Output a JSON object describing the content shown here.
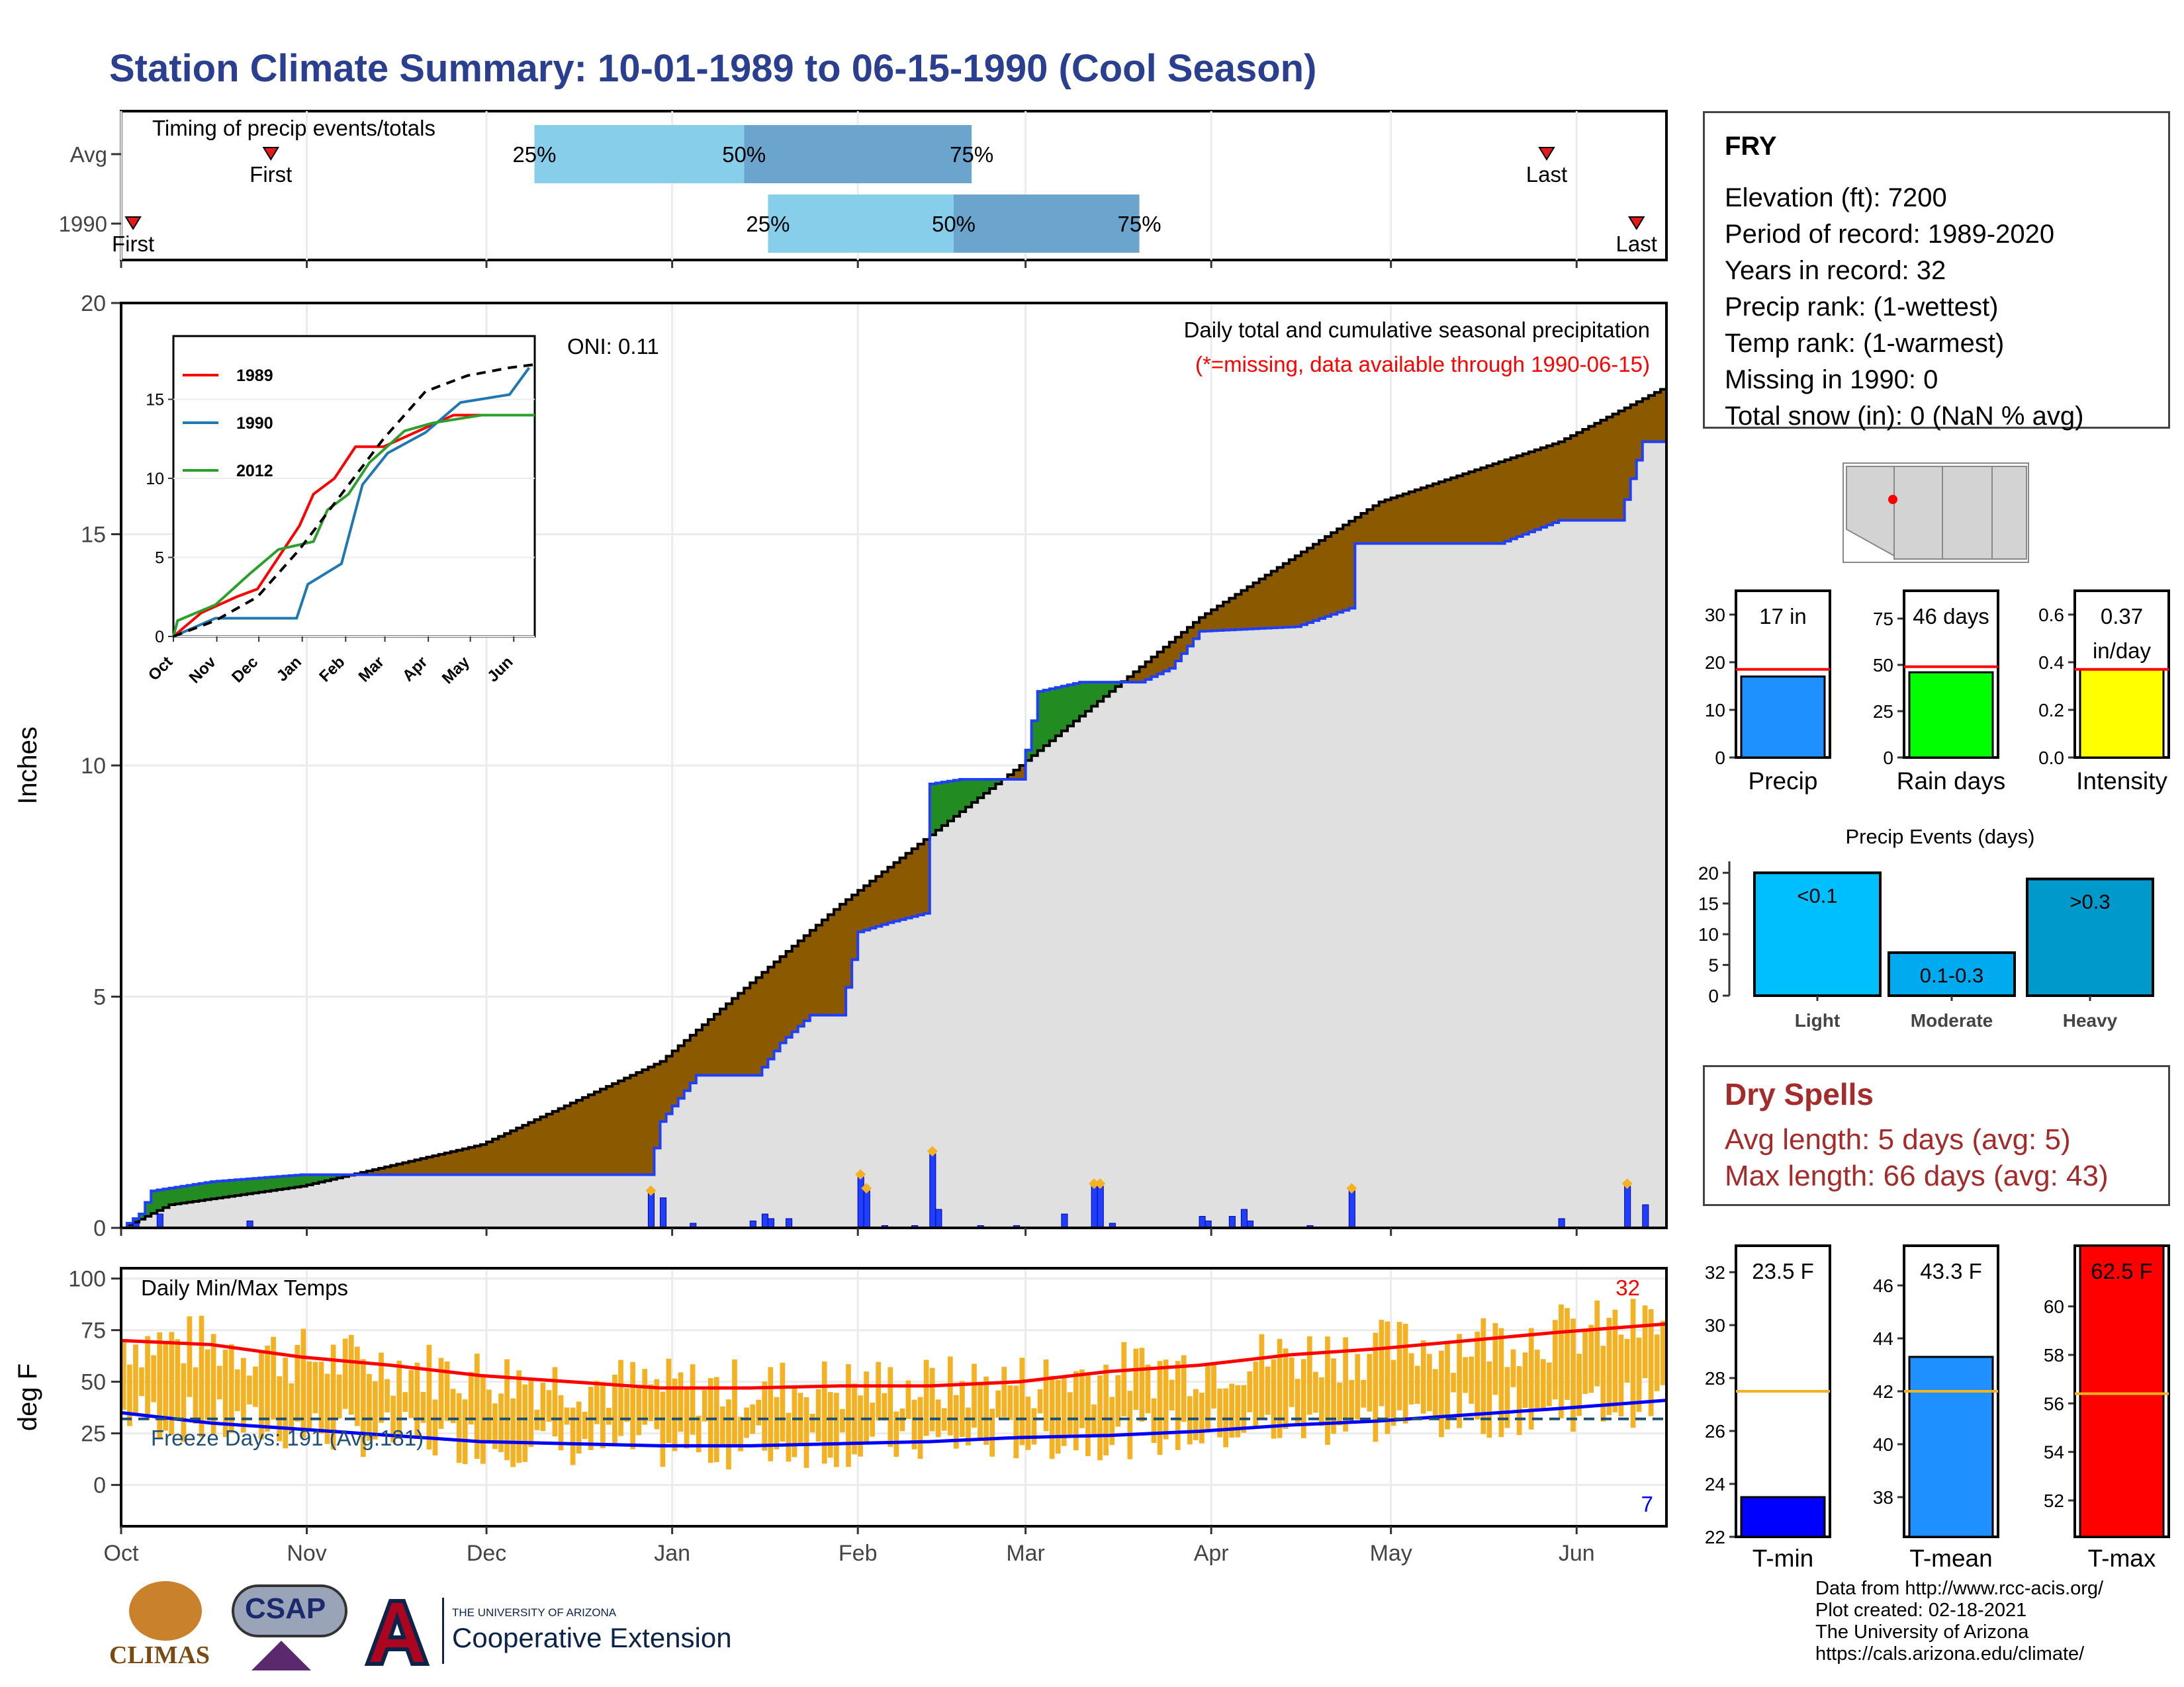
{
  "title": "Station Climate Summary: 10-01-1989 to 06-15-1990 (Cool Season)",
  "station": {
    "name": "FRY",
    "lines": [
      "Elevation (ft): 7200",
      "Period of record: 1989-2020",
      "Years in record: 32",
      "Precip rank:  (1-wettest)",
      "Temp rank:  (1-warmest)",
      "Missing in 1990: 0",
      "Total snow (in): 0 (NaN % avg)"
    ]
  },
  "dry_spells": {
    "title": "Dry Spells",
    "avg_length": "Avg length: 5 days (avg: 5)",
    "max_length": "Max length: 66 days (avg: 43)"
  },
  "credits": [
    "Data from http://www.rcc-acis.org/",
    "Plot created: 02-18-2021",
    "The University of Arizona",
    "https://cals.arizona.edu/climate/"
  ],
  "logos": {
    "climas": "CLIMAS",
    "csap": "CSAP",
    "ua_small": "THE UNIVERSITY OF ARIZONA",
    "ua_big": "Cooperative Extension"
  },
  "colors": {
    "title": "#2a3f8f",
    "light_blue": "#87ceeb",
    "mid_blue": "#6ba4cc",
    "brown": "#8b5a00",
    "grey_fill": "#e0e0e0",
    "precip_blue": "#1f3fff",
    "green": "#228b22",
    "orange": "#f4b223",
    "max_red": "#ff0000",
    "min_blue": "#0000ff",
    "dry_red": "#a52a2a"
  },
  "chart_data": [
    {
      "id": "timing",
      "type": "bar",
      "title": "Timing of precip events/totals",
      "rows": [
        {
          "label": "Avg",
          "first_label": "First",
          "first": "1989-10-26",
          "p25": "1989-12-09",
          "p50": "1990-01-13",
          "p75": "1990-02-20",
          "last": "1990-05-27",
          "last_label": "Last"
        },
        {
          "label": "1990",
          "first_label": "First",
          "first": "1989-10-03",
          "p25": "1990-01-17",
          "p50": "1990-02-17",
          "p75": "1990-03-20",
          "last": "1990-06-11",
          "last_label": "Last"
        }
      ],
      "pct_labels": [
        "25%",
        "50%",
        "75%"
      ]
    },
    {
      "id": "precip",
      "type": "area",
      "title": "Daily total and cumulative seasonal precipitation",
      "subtitle": "(*=missing, data available through 1990-06-15)",
      "annotation": "ONI: 0.11",
      "ylabel": "Inches",
      "ylim": [
        0,
        20
      ],
      "yticks": [
        0,
        5,
        10,
        15,
        20
      ],
      "xticks": [
        "Oct",
        "Nov",
        "Dec",
        "Jan",
        "Feb",
        "Mar",
        "Apr",
        "May",
        "Jun"
      ],
      "avg_cumulative": [
        [
          0,
          0
        ],
        [
          8,
          0.5
        ],
        [
          30,
          0.9
        ],
        [
          60,
          1.8
        ],
        [
          90,
          3.6
        ],
        [
          120,
          7
        ],
        [
          150,
          10
        ],
        [
          180,
          13.2
        ],
        [
          210,
          15.7
        ],
        [
          240,
          17
        ],
        [
          258,
          18.2
        ]
      ],
      "season_cumulative": [
        [
          0,
          0
        ],
        [
          3,
          0.3
        ],
        [
          5,
          0.8
        ],
        [
          15,
          1.0
        ],
        [
          25,
          1.1
        ],
        [
          30,
          1.15
        ],
        [
          88,
          1.15
        ],
        [
          90,
          2.3
        ],
        [
          96,
          3.3
        ],
        [
          106,
          3.3
        ],
        [
          110,
          4.0
        ],
        [
          115,
          4.6
        ],
        [
          120,
          4.6
        ],
        [
          123,
          6.4
        ],
        [
          128,
          6.6
        ],
        [
          134,
          6.8
        ],
        [
          135,
          9.6
        ],
        [
          140,
          9.7
        ],
        [
          150,
          9.7
        ],
        [
          153,
          11.6
        ],
        [
          160,
          11.8
        ],
        [
          170,
          11.8
        ],
        [
          175,
          12.1
        ],
        [
          180,
          12.9
        ],
        [
          196,
          13.0
        ],
        [
          205,
          13.4
        ],
        [
          206,
          14.8
        ],
        [
          230,
          14.8
        ],
        [
          240,
          15.3
        ],
        [
          250,
          15.3
        ],
        [
          252,
          16.2
        ],
        [
          254,
          17.0
        ],
        [
          258,
          17.0
        ]
      ],
      "daily_precip": [
        [
          2,
          0.1
        ],
        [
          6,
          0.3
        ],
        [
          21,
          0.15
        ],
        [
          88,
          0.75
        ],
        [
          90,
          0.65
        ],
        [
          95,
          0.1
        ],
        [
          105,
          0.15
        ],
        [
          107,
          0.3
        ],
        [
          108,
          0.2
        ],
        [
          111,
          0.2
        ],
        [
          123,
          1.1
        ],
        [
          124,
          0.8
        ],
        [
          127,
          0.05
        ],
        [
          132,
          0.05
        ],
        [
          135,
          1.6
        ],
        [
          136,
          0.4
        ],
        [
          143,
          0.05
        ],
        [
          149,
          0.05
        ],
        [
          157,
          0.3
        ],
        [
          162,
          0.9
        ],
        [
          163,
          0.9
        ],
        [
          165,
          0.1
        ],
        [
          180,
          0.25
        ],
        [
          181,
          0.15
        ],
        [
          185,
          0.25
        ],
        [
          187,
          0.4
        ],
        [
          188,
          0.15
        ],
        [
          198,
          0.05
        ],
        [
          205,
          0.8
        ],
        [
          240,
          0.2
        ],
        [
          251,
          0.9
        ],
        [
          254,
          0.5
        ]
      ],
      "inset": {
        "series_names": [
          "1989",
          "1990",
          "2012"
        ],
        "xticks": [
          "Oct",
          "Nov",
          "Dec",
          "Jan",
          "Feb",
          "Mar",
          "Apr",
          "May",
          "Jun"
        ],
        "yticks": [
          0,
          5,
          10,
          15
        ],
        "series": [
          {
            "name": "1989",
            "color": "#ff0000",
            "points": [
              [
                0,
                0
              ],
              [
                20,
                1.5
              ],
              [
                45,
                2.5
              ],
              [
                60,
                3
              ],
              [
                75,
                5
              ],
              [
                90,
                7
              ],
              [
                100,
                9
              ],
              [
                115,
                10
              ],
              [
                130,
                12
              ],
              [
                150,
                12
              ],
              [
                175,
                13
              ],
              [
                200,
                14
              ],
              [
                230,
                14
              ],
              [
                258,
                14
              ]
            ]
          },
          {
            "name": "1990",
            "color": "#1f77b4",
            "points": [
              [
                0,
                0
              ],
              [
                30,
                1.15
              ],
              [
                88,
                1.15
              ],
              [
                96,
                3.3
              ],
              [
                120,
                4.6
              ],
              [
                135,
                9.6
              ],
              [
                153,
                11.6
              ],
              [
                180,
                12.9
              ],
              [
                205,
                14.8
              ],
              [
                240,
                15.3
              ],
              [
                254,
                17
              ]
            ]
          },
          {
            "name": "2012",
            "color": "#2ca02c",
            "points": [
              [
                0,
                0
              ],
              [
                3,
                1
              ],
              [
                30,
                2
              ],
              [
                55,
                4
              ],
              [
                75,
                5.5
              ],
              [
                100,
                6
              ],
              [
                110,
                8
              ],
              [
                125,
                9
              ],
              [
                140,
                11
              ],
              [
                165,
                13
              ],
              [
                185,
                13.5
              ],
              [
                220,
                14
              ],
              [
                258,
                14
              ]
            ]
          }
        ],
        "avg": [
          [
            0,
            0
          ],
          [
            30,
            1
          ],
          [
            60,
            2.5
          ],
          [
            90,
            5.5
          ],
          [
            120,
            9
          ],
          [
            150,
            12.5
          ],
          [
            180,
            15.5
          ],
          [
            210,
            16.5
          ],
          [
            240,
            17
          ],
          [
            258,
            17.2
          ]
        ]
      }
    },
    {
      "id": "temps",
      "type": "line",
      "title": "Daily Min/Max Temps",
      "ylabel": "deg F",
      "ylim": [
        -20,
        105
      ],
      "yticks": [
        0,
        25,
        50,
        75,
        100
      ],
      "freeze_label": "Freeze Days: 191 (Avg:181)",
      "freeze_threshold": 32,
      "max_count": "32",
      "min_count": "7",
      "avg_max": [
        [
          0,
          70
        ],
        [
          15,
          68
        ],
        [
          30,
          62
        ],
        [
          45,
          58
        ],
        [
          60,
          53
        ],
        [
          75,
          50
        ],
        [
          90,
          47
        ],
        [
          105,
          47
        ],
        [
          120,
          48
        ],
        [
          135,
          48
        ],
        [
          150,
          50
        ],
        [
          165,
          55
        ],
        [
          180,
          58
        ],
        [
          195,
          63
        ],
        [
          210,
          66
        ],
        [
          225,
          70
        ],
        [
          240,
          74
        ],
        [
          258,
          78
        ]
      ],
      "avg_min": [
        [
          0,
          35
        ],
        [
          15,
          30
        ],
        [
          30,
          27
        ],
        [
          45,
          24
        ],
        [
          60,
          21
        ],
        [
          75,
          20
        ],
        [
          90,
          19
        ],
        [
          105,
          19
        ],
        [
          120,
          20
        ],
        [
          135,
          21
        ],
        [
          150,
          23
        ],
        [
          165,
          24
        ],
        [
          180,
          26
        ],
        [
          195,
          29
        ],
        [
          210,
          31
        ],
        [
          225,
          34
        ],
        [
          240,
          37
        ],
        [
          258,
          41
        ]
      ]
    },
    {
      "id": "precip_summary",
      "type": "bar",
      "panels": [
        {
          "label": "Precip",
          "value_label": "17 in",
          "value": 17,
          "avg": 18.5,
          "ylim": [
            0,
            35
          ],
          "yticks": [
            0,
            10,
            20,
            30
          ],
          "color": "#1e90ff"
        },
        {
          "label": "Rain days",
          "value_label": "46 days",
          "value": 46,
          "avg": 49,
          "ylim": [
            0,
            90
          ],
          "yticks": [
            0,
            25,
            50,
            75
          ],
          "color": "#00ff00"
        },
        {
          "label": "Intensity",
          "value_label": "0.37 in/day",
          "value": 0.37,
          "avg": 0.37,
          "ylim": [
            0,
            0.7
          ],
          "yticks": [
            0.0,
            0.2,
            0.4,
            0.6
          ],
          "color": "#ffff00"
        }
      ]
    },
    {
      "id": "precip_events",
      "type": "bar",
      "title": "Precip Events (days)",
      "categories": [
        "Light",
        "Moderate",
        "Heavy"
      ],
      "bar_labels": [
        "<0.1",
        "0.1-0.3",
        ">0.3"
      ],
      "values": [
        20,
        7,
        19
      ],
      "ylim": [
        0,
        21
      ],
      "yticks": [
        0,
        5,
        10,
        15,
        20
      ],
      "colors": [
        "#00bfff",
        "#00aaee",
        "#0099cc"
      ]
    },
    {
      "id": "temp_summary",
      "type": "bar",
      "panels": [
        {
          "label": "T-min",
          "value_label": "23.5 F",
          "value": 23.5,
          "avg": 27.5,
          "ylim": [
            22,
            33
          ],
          "yticks": [
            22,
            24,
            26,
            28,
            30,
            32
          ],
          "color": "#0000ff"
        },
        {
          "label": "T-mean",
          "value_label": "43.3 F",
          "value": 43.3,
          "avg": 42.0,
          "ylim": [
            36.5,
            47.5
          ],
          "yticks": [
            38,
            40,
            42,
            44,
            46
          ],
          "color": "#1e90ff"
        },
        {
          "label": "T-max",
          "value_label": "62.5 F",
          "value": 62.5,
          "avg": 56.4,
          "ylim": [
            50.5,
            62.5
          ],
          "yticks": [
            52,
            54,
            56,
            58,
            60
          ],
          "color": "#ff0000"
        }
      ]
    }
  ]
}
